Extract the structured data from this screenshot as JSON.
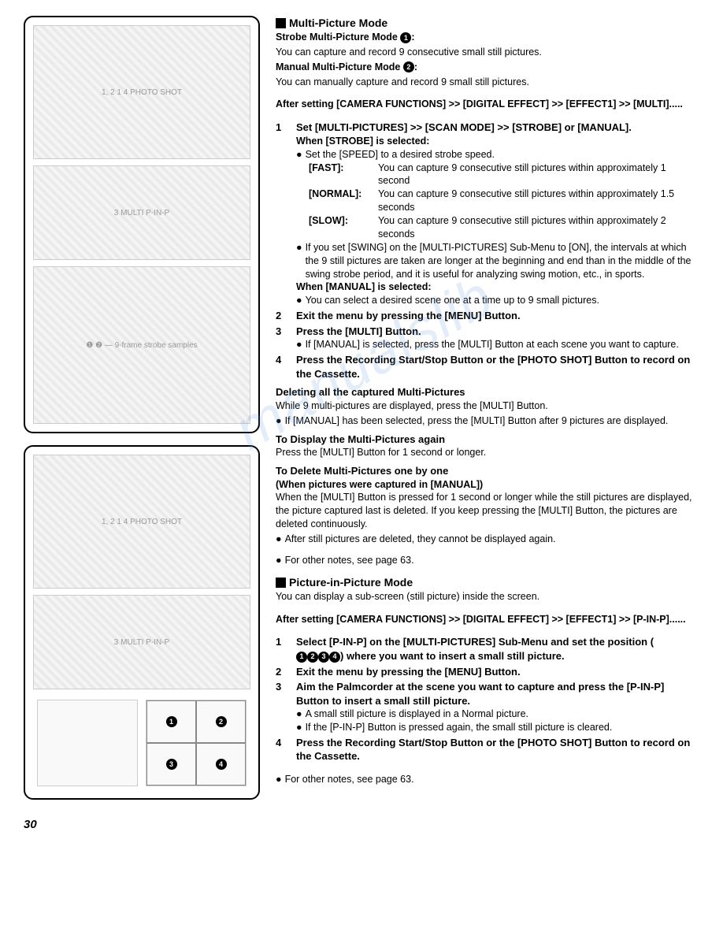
{
  "watermark": "manualslib",
  "page_number": "30",
  "diagram_labels": {
    "top_callouts": "1, 2   1          4 PHOTO SHOT",
    "dial_callout": "4",
    "multi_label": "3  MULTI P-IN-P"
  },
  "section1": {
    "heading": "Multi-Picture Mode",
    "strobe_title": "Strobe Multi-Picture Mode",
    "strobe_desc": "You can capture and record 9 consecutive small still pictures.",
    "manual_title": "Manual Multi-Picture Mode",
    "manual_desc": "You can manually capture and record 9 small still pictures.",
    "after_setting": "After setting [CAMERA FUNCTIONS] >> [DIGITAL EFFECT] >> [EFFECT1] >> [MULTI].....",
    "step1": {
      "title": "Set [MULTI-PICTURES] >> [SCAN MODE] >> [STROBE] or [MANUAL].",
      "strobe_selected": "When [STROBE] is selected:",
      "set_speed": "Set the [SPEED] to a desired strobe speed.",
      "fast_label": "[FAST]:",
      "fast_desc": "You can capture 9 consecutive still pictures within approximately 1 second",
      "normal_label": "[NORMAL]:",
      "normal_desc": "You can capture 9 consecutive still pictures within approximately 1.5 seconds",
      "slow_label": "[SLOW]:",
      "slow_desc": "You can capture 9 consecutive still pictures within approximately 2 seconds",
      "swing_note": "If you set [SWING] on the [MULTI-PICTURES] Sub-Menu to [ON], the intervals at which the 9 still pictures are taken are longer at the beginning and end than in the middle of the swing strobe period, and it is useful for analyzing swing motion, etc., in sports.",
      "manual_selected": "When [MANUAL] is selected:",
      "manual_note": "You can select a desired scene one at a time up to 9 small pictures."
    },
    "step2": "Exit the menu by pressing the [MENU] Button.",
    "step3": {
      "title": "Press the [MULTI] Button.",
      "note": "If [MANUAL] is selected, press the [MULTI] Button at each scene you want to capture."
    },
    "step4": "Press the Recording Start/Stop Button or the [PHOTO SHOT] Button to record on the Cassette.",
    "deleting": {
      "heading": "Deleting all the captured Multi-Pictures",
      "line1": "While 9 multi-pictures are displayed, press the [MULTI] Button.",
      "line2": "If [MANUAL] has been selected, press the [MULTI] Button after 9 pictures are displayed."
    },
    "display_again": {
      "heading": "To Display the Multi-Pictures again",
      "body": "Press the [MULTI] Button for 1 second or longer."
    },
    "delete_one": {
      "heading1": "To Delete Multi-Pictures one by one",
      "heading2": "(When pictures were captured in [MANUAL])",
      "body": "When the [MULTI] Button is pressed for 1 second or longer while the still pictures are displayed, the picture captured last is deleted. If you keep pressing the [MULTI] Button, the pictures are deleted continuously.",
      "note": "After still pictures are deleted, they cannot be displayed again."
    },
    "other_notes": "For other notes, see page 63."
  },
  "section2": {
    "heading": "Picture-in-Picture Mode",
    "intro": "You can display a sub-screen (still picture) inside the screen.",
    "after_setting": "After setting [CAMERA FUNCTIONS] >> [DIGITAL EFFECT] >> [EFFECT1] >> [P-IN-P]......",
    "step1_a": "Select [P-IN-P] on the [MULTI-PICTURES] Sub-Menu and set the position (",
    "step1_b": ") where you want to insert a small still picture.",
    "step2": "Exit the menu by pressing the [MENU] Button.",
    "step3": {
      "title": "Aim the Palmcorder at the scene you want to capture and press the [P-IN-P] Button to insert a small still picture.",
      "note1": "A small still picture is displayed in a Normal picture.",
      "note2": "If the [P-IN-P] Button is pressed again, the small still picture is cleared."
    },
    "step4": "Press the Recording Start/Stop Button or the [PHOTO SHOT] Button to record on the Cassette.",
    "other_notes": "For other notes, see page 63."
  }
}
